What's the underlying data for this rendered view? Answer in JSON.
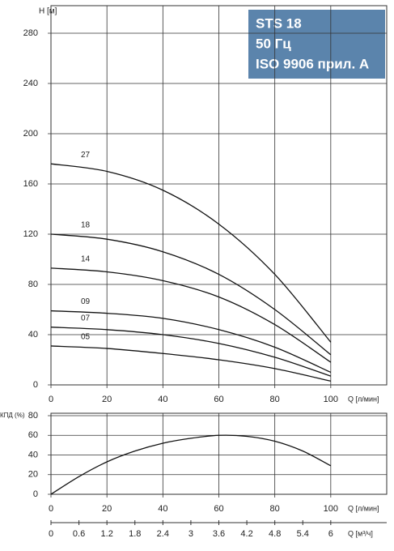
{
  "chart_data": [
    {
      "type": "line",
      "ylabel": "H [м]",
      "xlabel": "Q [л/мин]",
      "annotations": [
        "STS 18",
        "50 Гц",
        "ISO 9906 прил. A"
      ],
      "x": [
        0,
        20,
        40,
        60,
        80,
        100
      ],
      "series": [
        {
          "name": "27",
          "color": "#111111",
          "values": [
            176,
            170,
            155,
            128,
            88,
            34
          ]
        },
        {
          "name": "18",
          "color": "#111111",
          "values": [
            120,
            116,
            106,
            88,
            60,
            24
          ]
        },
        {
          "name": "14",
          "color": "#111111",
          "values": [
            93,
            90,
            83,
            70,
            48,
            18
          ]
        },
        {
          "name": "09",
          "color": "#111111",
          "values": [
            59,
            57,
            53,
            44,
            30,
            10
          ]
        },
        {
          "name": "07",
          "color": "#111111",
          "values": [
            46,
            44,
            40,
            33,
            22,
            7
          ]
        },
        {
          "name": "05",
          "color": "#111111",
          "values": [
            31,
            29,
            25,
            20,
            13,
            3
          ]
        }
      ],
      "xlim": [
        0,
        120
      ],
      "xticks": [
        0,
        20,
        40,
        60,
        80,
        100
      ],
      "ylim": [
        0,
        300
      ],
      "yticks": [
        0,
        40,
        80,
        120,
        160,
        200,
        240,
        280
      ],
      "grid": true
    },
    {
      "type": "line",
      "ylabel": "КПД (%)",
      "xlabel": "Q [л/мин]",
      "x2label": "Q [м³/ч]",
      "x": [
        0,
        10,
        20,
        30,
        40,
        50,
        60,
        70,
        80,
        90,
        100
      ],
      "series": [
        {
          "name": "КПД",
          "color": "#111111",
          "values": [
            0,
            18,
            33,
            44,
            52,
            57,
            60,
            59,
            54,
            44,
            29
          ]
        }
      ],
      "xlim": [
        0,
        120
      ],
      "xticks": [
        0,
        20,
        40,
        60,
        80,
        100
      ],
      "x2lim": [
        0,
        7.2
      ],
      "x2ticks": [
        0,
        0.6,
        1.2,
        1.8,
        2.4,
        3,
        3.6,
        4.2,
        4.8,
        5.4,
        6
      ],
      "ylim": [
        0,
        80
      ],
      "yticks": [
        0,
        20,
        40,
        60,
        80
      ],
      "grid": true
    }
  ]
}
